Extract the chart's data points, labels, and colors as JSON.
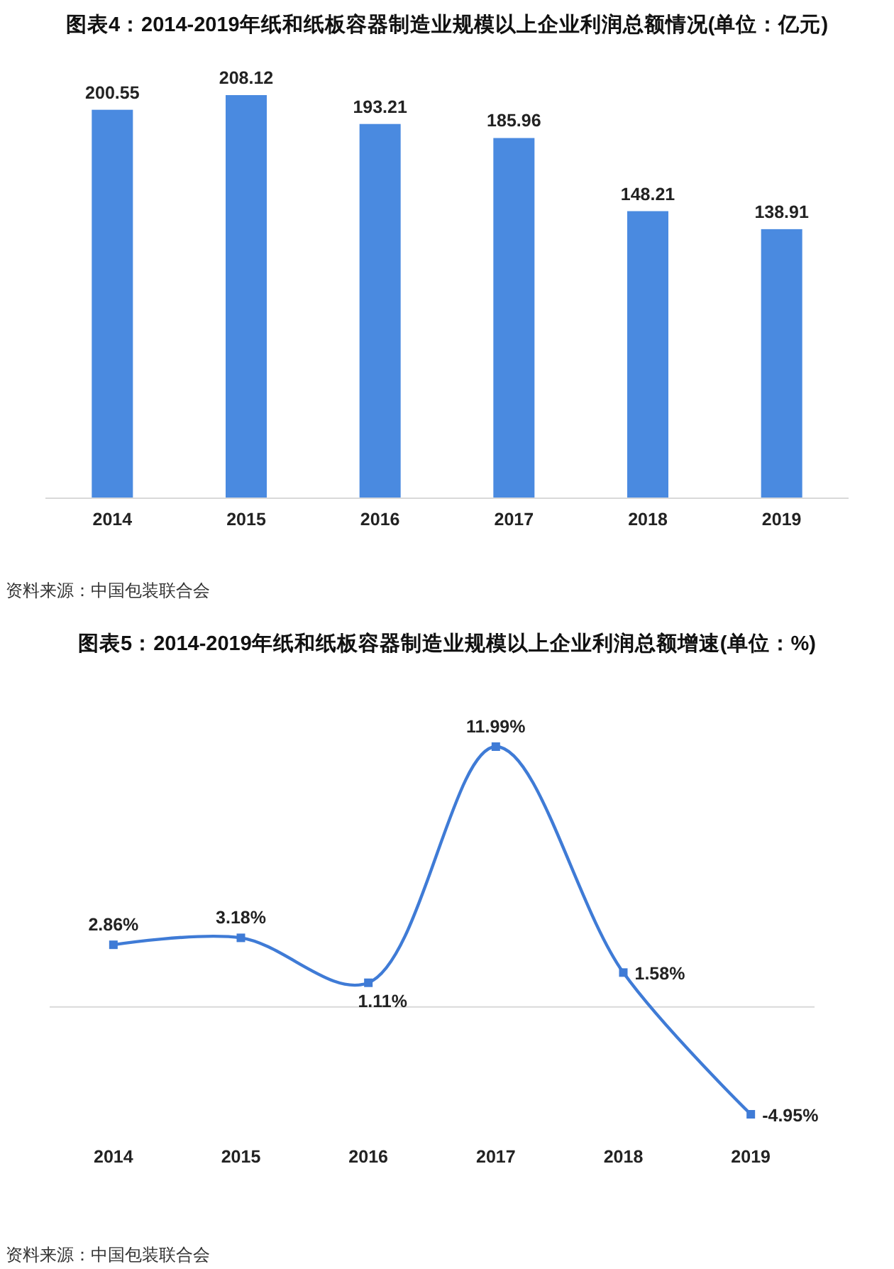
{
  "chart_data": [
    {
      "type": "bar",
      "title": "图表4：2014-2019年纸和纸板容器制造业规模以上企业利润总额情况(单位：亿元)",
      "categories": [
        "2014",
        "2015",
        "2016",
        "2017",
        "2018",
        "2019"
      ],
      "values": [
        200.55,
        208.12,
        193.21,
        185.96,
        148.21,
        138.91
      ],
      "color": "#4a8ae0",
      "data_labels": true,
      "annotations": [
        "资料来源：中国包装联合会"
      ]
    },
    {
      "type": "line",
      "title": "图表5：2014-2019年纸和纸板容器制造业规模以上企业利润总额增速(单位：%)",
      "categories": [
        "2014",
        "2015",
        "2016",
        "2017",
        "2018",
        "2019"
      ],
      "values": [
        2.86,
        3.18,
        1.11,
        11.99,
        1.58,
        -4.95
      ],
      "value_labels": [
        "2.86%",
        "3.18%",
        "1.11%",
        "11.99%",
        "1.58%",
        "-4.95%"
      ],
      "color": "#3f7bd6",
      "marker": "square",
      "line_style": "solid",
      "annotations": [
        "资料来源：中国包装联合会"
      ]
    }
  ]
}
